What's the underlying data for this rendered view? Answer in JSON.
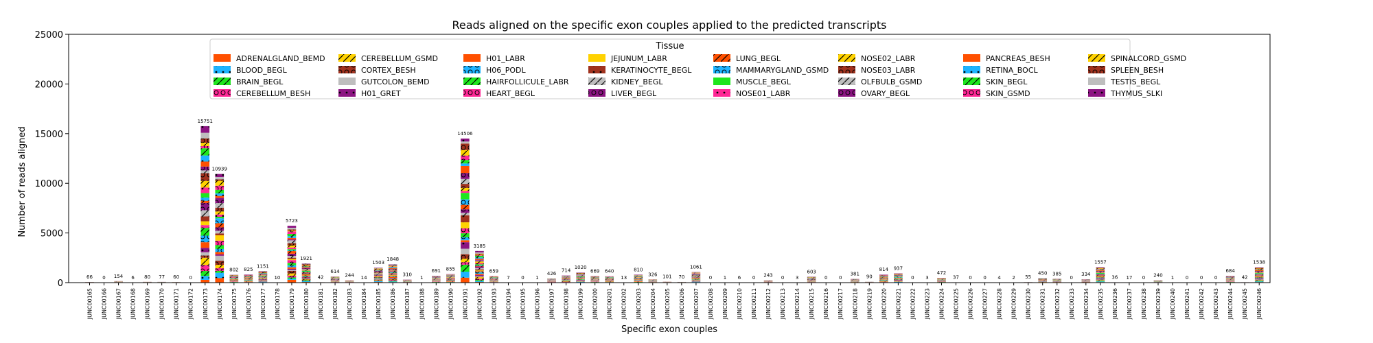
{
  "chart_data": {
    "type": "bar",
    "stacked": true,
    "title": "Reads aligned on the specific exon couples applied to the predicted transcripts",
    "xlabel": "Specific exon couples",
    "ylabel": "Number of reads aligned",
    "ylim": [
      0,
      25000
    ],
    "yticks": [
      0,
      5000,
      10000,
      15000,
      20000,
      25000
    ],
    "grid": false,
    "legend": {
      "title": "Tissue",
      "placement": "top-center",
      "columns": 8
    },
    "categories": [
      "JUNC00165",
      "JUNC00166",
      "JUNC00167",
      "JUNC00168",
      "JUNC00169",
      "JUNC00170",
      "JUNC00171",
      "JUNC00172",
      "JUNC00173",
      "JUNC00174",
      "JUNC00175",
      "JUNC00176",
      "JUNC00177",
      "JUNC00178",
      "JUNC00179",
      "JUNC00180",
      "JUNC00181",
      "JUNC00182",
      "JUNC00183",
      "JUNC00184",
      "JUNC00185",
      "JUNC00186",
      "JUNC00187",
      "JUNC00188",
      "JUNC00189",
      "JUNC00190",
      "JUNC00191",
      "JUNC00192",
      "JUNC00193",
      "JUNC00194",
      "JUNC00195",
      "JUNC00196",
      "JUNC00197",
      "JUNC00198",
      "JUNC00199",
      "JUNC00200",
      "JUNC00201",
      "JUNC00202",
      "JUNC00203",
      "JUNC00204",
      "JUNC00205",
      "JUNC00206",
      "JUNC00207",
      "JUNC00208",
      "JUNC00209",
      "JUNC00210",
      "JUNC00211",
      "JUNC00212",
      "JUNC00213",
      "JUNC00214",
      "JUNC00215",
      "JUNC00216",
      "JUNC00217",
      "JUNC00218",
      "JUNC00219",
      "JUNC00220",
      "JUNC00221",
      "JUNC00222",
      "JUNC00223",
      "JUNC00224",
      "JUNC00225",
      "JUNC00226",
      "JUNC00227",
      "JUNC00228",
      "JUNC00229",
      "JUNC00230",
      "JUNC00231",
      "JUNC00232",
      "JUNC00233",
      "JUNC00234",
      "JUNC00235",
      "JUNC00236",
      "JUNC00237",
      "JUNC00238",
      "JUNC00239",
      "JUNC00240",
      "JUNC00241",
      "JUNC00242",
      "JUNC00243",
      "JUNC00244",
      "JUNC00245",
      "JUNC00246"
    ],
    "totals": [
      66,
      0,
      154,
      6,
      80,
      77,
      60,
      0,
      15751,
      10939,
      802,
      825,
      1151,
      10,
      5723,
      1921,
      42,
      614,
      244,
      14,
      1503,
      1848,
      310,
      1,
      691,
      855,
      14506,
      3185,
      659,
      7,
      0,
      1,
      426,
      714,
      1020,
      669,
      640,
      13,
      810,
      326,
      101,
      70,
      1061,
      0,
      1,
      6,
      0,
      243,
      0,
      3,
      603,
      0,
      0,
      381,
      90,
      814,
      937,
      0,
      3,
      472,
      37,
      0,
      0,
      4,
      2,
      55,
      450,
      385,
      0,
      334,
      1557,
      36,
      17,
      0,
      240,
      1,
      0,
      0,
      0,
      684,
      42,
      1538
    ],
    "series": [
      {
        "name": "ADRENALGLAND_BEMD",
        "color": "#ff5000",
        "hatch": "none"
      },
      {
        "name": "BLOOD_BEGL",
        "color": "#1eb4ff",
        "hatch": "dot"
      },
      {
        "name": "BRAIN_BEGL",
        "color": "#1ee61e",
        "hatch": "slash"
      },
      {
        "name": "CEREBELLUM_BESH",
        "color": "#ff2896",
        "hatch": "circle"
      },
      {
        "name": "CEREBELLUM_GSMD",
        "color": "#ffd200",
        "hatch": "slash"
      },
      {
        "name": "CORTEX_BESH",
        "color": "#a0321e",
        "hatch": "circle"
      },
      {
        "name": "GUTCOLON_BEMD",
        "color": "#bebebe",
        "hatch": "none"
      },
      {
        "name": "H01_GRET",
        "color": "#8c1482",
        "hatch": "dot"
      },
      {
        "name": "H01_LABR",
        "color": "#ff5000",
        "hatch": "none"
      },
      {
        "name": "H06_PODL",
        "color": "#1eb4ff",
        "hatch": "circle"
      },
      {
        "name": "HAIRFOLLICULE_LABR",
        "color": "#1ee61e",
        "hatch": "slash"
      },
      {
        "name": "HEART_BEGL",
        "color": "#ff2896",
        "hatch": "circle"
      },
      {
        "name": "JEJUNUM_LABR",
        "color": "#ffd200",
        "hatch": "none"
      },
      {
        "name": "KERATINOCYTE_BEGL",
        "color": "#a0321e",
        "hatch": "dot"
      },
      {
        "name": "KIDNEY_BEGL",
        "color": "#bebebe",
        "hatch": "slash"
      },
      {
        "name": "LIVER_BEGL",
        "color": "#8c1482",
        "hatch": "circle"
      },
      {
        "name": "LUNG_BEGL",
        "color": "#ff5000",
        "hatch": "slash"
      },
      {
        "name": "MAMMARYGLAND_GSMD",
        "color": "#1eb4ff",
        "hatch": "circle"
      },
      {
        "name": "MUSCLE_BEGL",
        "color": "#1ee61e",
        "hatch": "none"
      },
      {
        "name": "NOSE01_LABR",
        "color": "#ff2896",
        "hatch": "dot"
      },
      {
        "name": "NOSE02_LABR",
        "color": "#ffd200",
        "hatch": "slash"
      },
      {
        "name": "NOSE03_LABR",
        "color": "#a0321e",
        "hatch": "circle"
      },
      {
        "name": "OLFBULB_GSMD",
        "color": "#bebebe",
        "hatch": "slash"
      },
      {
        "name": "OVARY_BEGL",
        "color": "#8c1482",
        "hatch": "circle"
      },
      {
        "name": "PANCREAS_BESH",
        "color": "#ff5000",
        "hatch": "none"
      },
      {
        "name": "RETINA_BOCL",
        "color": "#1eb4ff",
        "hatch": "dot"
      },
      {
        "name": "SKIN_BEGL",
        "color": "#1ee61e",
        "hatch": "slash"
      },
      {
        "name": "SKIN_GSMD",
        "color": "#ff2896",
        "hatch": "circle"
      },
      {
        "name": "SPINALCORD_GSMD",
        "color": "#ffd200",
        "hatch": "slash"
      },
      {
        "name": "SPLEEN_BESH",
        "color": "#a0321e",
        "hatch": "circle"
      },
      {
        "name": "TESTIS_BEGL",
        "color": "#bebebe",
        "hatch": "none"
      },
      {
        "name": "THYMUS_SLKI",
        "color": "#8c1482",
        "hatch": "dot"
      }
    ]
  }
}
